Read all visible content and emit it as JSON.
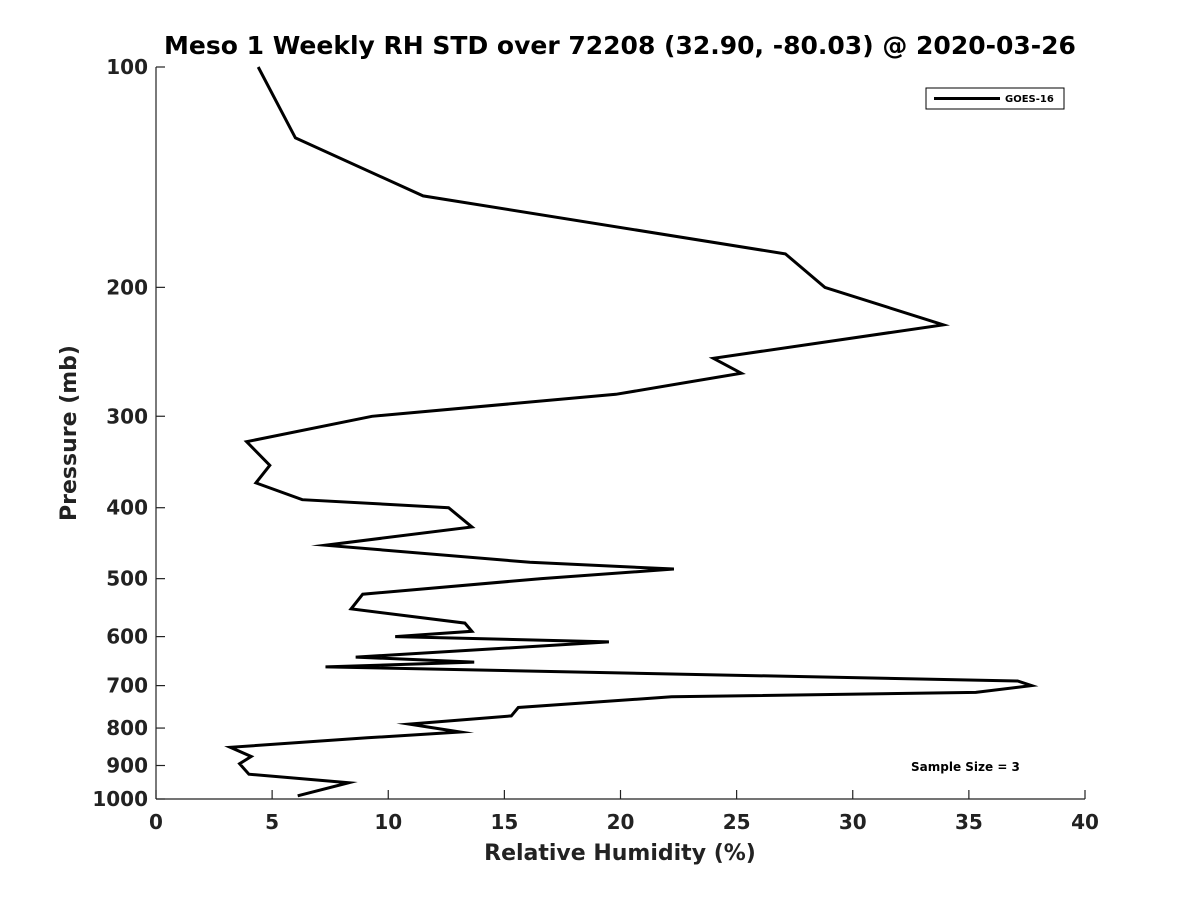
{
  "chart_data": {
    "type": "line",
    "title": "Meso 1 Weekly RH STD over 72208 (32.90, -80.03) @ 2020-03-26",
    "xlabel": "Relative Humidity (%)",
    "ylabel": "Pressure (mb)",
    "xlim": [
      0,
      40
    ],
    "ylim": [
      100,
      1000
    ],
    "y_scale": "log",
    "y_reversed": true,
    "grid": false,
    "legend_placement": "top-right",
    "x_ticks": [
      "0",
      "5",
      "10",
      "15",
      "20",
      "25",
      "30",
      "35",
      "40"
    ],
    "y_ticks": [
      "100",
      "200",
      "300",
      "400",
      "500",
      "600",
      "700",
      "800",
      "900",
      "1000"
    ],
    "series": [
      {
        "name": "GOES-16",
        "color": "#000000",
        "points": [
          [
            4.4,
            100
          ],
          [
            6.0,
            125
          ],
          [
            11.5,
            150
          ],
          [
            27.1,
            180
          ],
          [
            28.8,
            200
          ],
          [
            33.9,
            225
          ],
          [
            24.0,
            250
          ],
          [
            25.2,
            262
          ],
          [
            19.8,
            280
          ],
          [
            9.3,
            300
          ],
          [
            3.9,
            325
          ],
          [
            4.9,
            350
          ],
          [
            4.3,
            370
          ],
          [
            6.3,
            390
          ],
          [
            12.6,
            400
          ],
          [
            13.6,
            425
          ],
          [
            7.3,
            450
          ],
          [
            16.1,
            475
          ],
          [
            22.3,
            485
          ],
          [
            16.6,
            500
          ],
          [
            8.9,
            525
          ],
          [
            8.4,
            550
          ],
          [
            13.3,
            575
          ],
          [
            13.6,
            590
          ],
          [
            10.3,
            600
          ],
          [
            19.5,
            610
          ],
          [
            8.6,
            640
          ],
          [
            13.7,
            650
          ],
          [
            7.3,
            660
          ],
          [
            37.1,
            690
          ],
          [
            37.7,
            700
          ],
          [
            35.3,
            715
          ],
          [
            22.2,
            725
          ],
          [
            15.6,
            750
          ],
          [
            15.3,
            770
          ],
          [
            10.9,
            790
          ],
          [
            13.1,
            810
          ],
          [
            9.1,
            825
          ],
          [
            3.2,
            850
          ],
          [
            4.1,
            875
          ],
          [
            3.6,
            895
          ],
          [
            4.0,
            925
          ],
          [
            8.3,
            950
          ],
          [
            6.1,
            990
          ]
        ]
      }
    ],
    "annotation": "Sample Size = 3"
  }
}
